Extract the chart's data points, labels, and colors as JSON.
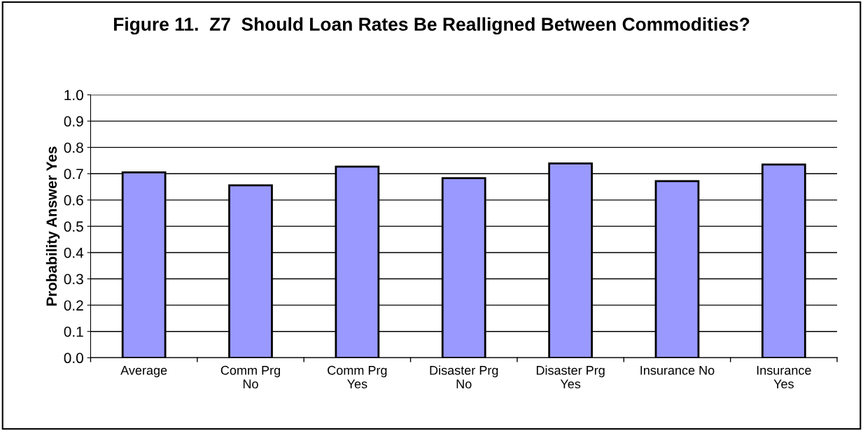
{
  "chart_data": {
    "type": "bar",
    "title": "Figure 11.  Z7  Should Loan Rates Be Realligned Between Commodities?",
    "ylabel": "Probability Answer Yes",
    "categories": [
      "Average",
      "Comm Prg\nNo",
      "Comm Prg\nYes",
      "Disaster Prg\nNo",
      "Disaster Prg\nYes",
      "Insurance No",
      "Insurance\nYes"
    ],
    "values": [
      0.705,
      0.656,
      0.727,
      0.683,
      0.739,
      0.672,
      0.735
    ],
    "color": "#9999ff",
    "ylim": [
      0,
      1
    ],
    "yticks": [
      {
        "value": 0,
        "label": "0.0"
      },
      {
        "value": 0.1,
        "label": "0.1"
      },
      {
        "value": 0.2,
        "label": "0.2"
      },
      {
        "value": 0.3,
        "label": "0.3"
      },
      {
        "value": 0.4,
        "label": "0.4"
      },
      {
        "value": 0.5,
        "label": "0.5"
      },
      {
        "value": 0.6,
        "label": "0.6"
      },
      {
        "value": 0.7,
        "label": "0.7"
      },
      {
        "value": 0.8,
        "label": "0.8"
      },
      {
        "value": 0.9,
        "label": "0.9"
      },
      {
        "value": 1,
        "label": "1.0"
      }
    ],
    "grid": "y"
  }
}
